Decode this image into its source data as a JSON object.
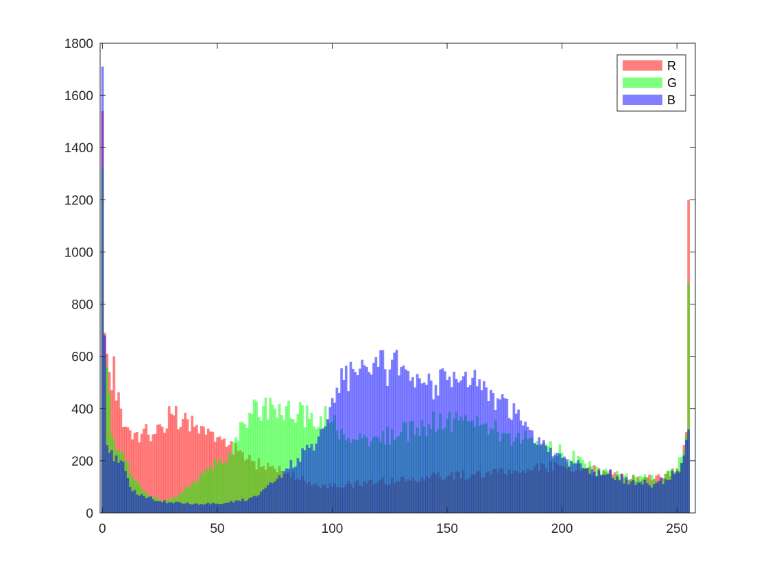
{
  "chart_data": {
    "type": "bar",
    "title": "",
    "xlabel": "",
    "ylabel": "",
    "xlim": [
      -1,
      258
    ],
    "ylim": [
      0,
      1800
    ],
    "xticks": [
      0,
      50,
      100,
      150,
      200,
      250
    ],
    "yticks": [
      0,
      200,
      400,
      600,
      800,
      1000,
      1200,
      1400,
      1600,
      1800
    ],
    "grid": false,
    "legend_position": "top-right",
    "bin_width": 1,
    "series": [
      {
        "name": "R",
        "color": "#ff0000",
        "opacity": 0.5,
        "control_points": [
          [
            0,
            1540
          ],
          [
            1,
            690
          ],
          [
            2,
            610
          ],
          [
            3,
            540
          ],
          [
            4,
            470
          ],
          [
            5,
            600
          ],
          [
            6,
            430
          ],
          [
            8,
            400
          ],
          [
            10,
            330
          ],
          [
            15,
            310
          ],
          [
            20,
            300
          ],
          [
            25,
            340
          ],
          [
            30,
            380
          ],
          [
            35,
            360
          ],
          [
            40,
            330
          ],
          [
            45,
            300
          ],
          [
            50,
            290
          ],
          [
            55,
            260
          ],
          [
            60,
            240
          ],
          [
            65,
            200
          ],
          [
            70,
            180
          ],
          [
            80,
            150
          ],
          [
            90,
            120
          ],
          [
            100,
            100
          ],
          [
            120,
            120
          ],
          [
            150,
            140
          ],
          [
            180,
            160
          ],
          [
            200,
            180
          ],
          [
            210,
            170
          ],
          [
            220,
            150
          ],
          [
            230,
            130
          ],
          [
            240,
            130
          ],
          [
            245,
            150
          ],
          [
            248,
            170
          ],
          [
            250,
            170
          ],
          [
            252,
            190
          ],
          [
            253,
            260
          ],
          [
            254,
            310
          ],
          [
            255,
            1200
          ]
        ]
      },
      {
        "name": "G",
        "color": "#00ff00",
        "opacity": 0.5,
        "control_points": [
          [
            0,
            1320
          ],
          [
            1,
            600
          ],
          [
            2,
            560
          ],
          [
            3,
            460
          ],
          [
            4,
            300
          ],
          [
            5,
            280
          ],
          [
            6,
            240
          ],
          [
            10,
            200
          ],
          [
            15,
            120
          ],
          [
            20,
            70
          ],
          [
            25,
            50
          ],
          [
            30,
            50
          ],
          [
            35,
            80
          ],
          [
            40,
            120
          ],
          [
            45,
            170
          ],
          [
            50,
            190
          ],
          [
            55,
            230
          ],
          [
            58,
            290
          ],
          [
            62,
            340
          ],
          [
            65,
            380
          ],
          [
            70,
            410
          ],
          [
            75,
            400
          ],
          [
            80,
            410
          ],
          [
            85,
            380
          ],
          [
            90,
            360
          ],
          [
            95,
            370
          ],
          [
            100,
            350
          ],
          [
            105,
            300
          ],
          [
            110,
            280
          ],
          [
            120,
            290
          ],
          [
            130,
            310
          ],
          [
            140,
            330
          ],
          [
            150,
            360
          ],
          [
            160,
            350
          ],
          [
            170,
            320
          ],
          [
            180,
            290
          ],
          [
            190,
            260
          ],
          [
            200,
            230
          ],
          [
            210,
            190
          ],
          [
            220,
            160
          ],
          [
            230,
            130
          ],
          [
            240,
            130
          ],
          [
            245,
            150
          ],
          [
            250,
            170
          ],
          [
            253,
            240
          ],
          [
            254,
            300
          ],
          [
            255,
            880
          ]
        ]
      },
      {
        "name": "B",
        "color": "#0000ff",
        "opacity": 0.5,
        "control_points": [
          [
            0,
            1710
          ],
          [
            1,
            680
          ],
          [
            2,
            260
          ],
          [
            3,
            230
          ],
          [
            6,
            220
          ],
          [
            10,
            160
          ],
          [
            12,
            100
          ],
          [
            15,
            70
          ],
          [
            20,
            60
          ],
          [
            25,
            45
          ],
          [
            30,
            40
          ],
          [
            35,
            35
          ],
          [
            40,
            35
          ],
          [
            45,
            35
          ],
          [
            50,
            35
          ],
          [
            55,
            40
          ],
          [
            60,
            45
          ],
          [
            65,
            60
          ],
          [
            70,
            90
          ],
          [
            75,
            120
          ],
          [
            80,
            170
          ],
          [
            85,
            210
          ],
          [
            90,
            250
          ],
          [
            95,
            320
          ],
          [
            98,
            360
          ],
          [
            100,
            440
          ],
          [
            102,
            480
          ],
          [
            105,
            510
          ],
          [
            110,
            540
          ],
          [
            115,
            560
          ],
          [
            120,
            560
          ],
          [
            125,
            550
          ],
          [
            130,
            560
          ],
          [
            135,
            520
          ],
          [
            140,
            500
          ],
          [
            145,
            490
          ],
          [
            150,
            510
          ],
          [
            155,
            500
          ],
          [
            160,
            490
          ],
          [
            165,
            470
          ],
          [
            170,
            460
          ],
          [
            175,
            440
          ],
          [
            180,
            380
          ],
          [
            185,
            330
          ],
          [
            190,
            290
          ],
          [
            195,
            250
          ],
          [
            200,
            210
          ],
          [
            205,
            190
          ],
          [
            210,
            170
          ],
          [
            220,
            150
          ],
          [
            230,
            120
          ],
          [
            240,
            110
          ],
          [
            245,
            130
          ],
          [
            250,
            160
          ],
          [
            253,
            220
          ],
          [
            254,
            280
          ],
          [
            255,
            320
          ]
        ]
      }
    ]
  }
}
